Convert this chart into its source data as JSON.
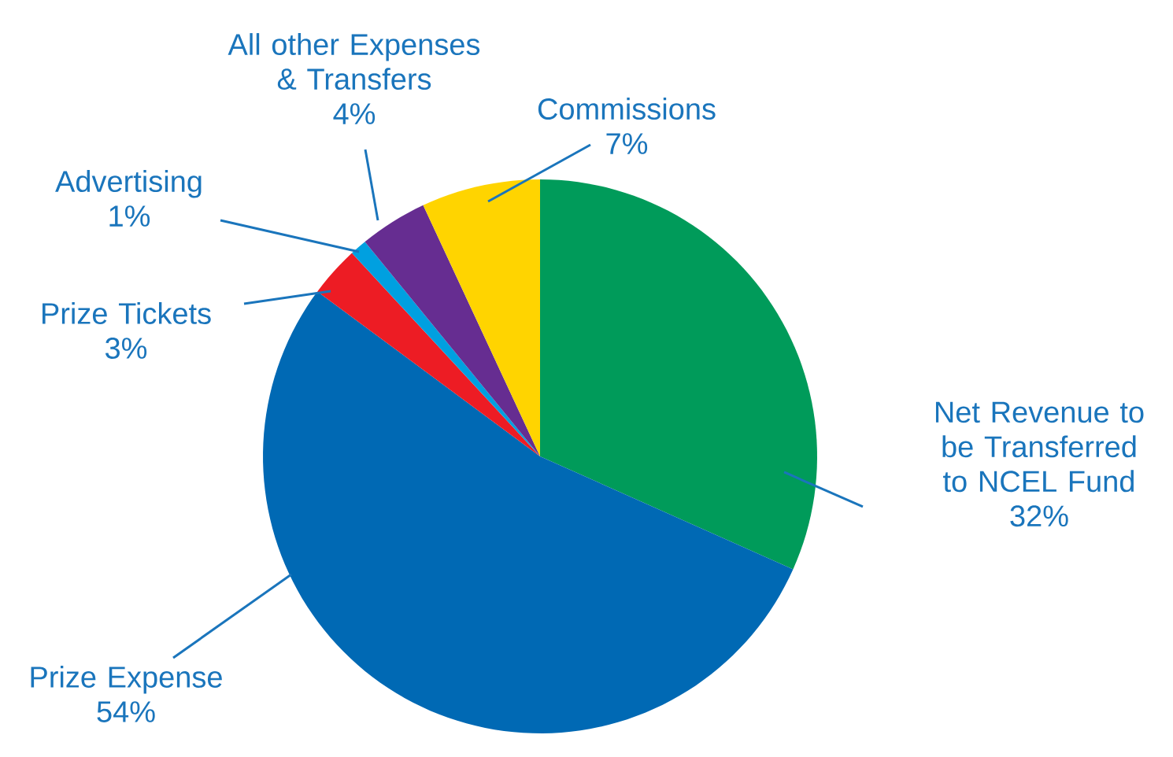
{
  "chart_data": {
    "type": "pie",
    "categories": [
      "Net Revenue to be Transferred to NCEL Fund",
      "Prize Expense",
      "Prize Tickets",
      "Advertising",
      "All other Expenses & Transfers",
      "Commissions"
    ],
    "values": [
      32,
      54,
      3,
      1,
      4,
      7
    ],
    "value_labels": [
      "32%",
      "54%",
      "3%",
      "1%",
      "4%",
      "7%"
    ],
    "colors": [
      "#009b5a",
      "#0069b4",
      "#ed1c24",
      "#00a0e0",
      "#662d91",
      "#ffd400"
    ]
  }
}
